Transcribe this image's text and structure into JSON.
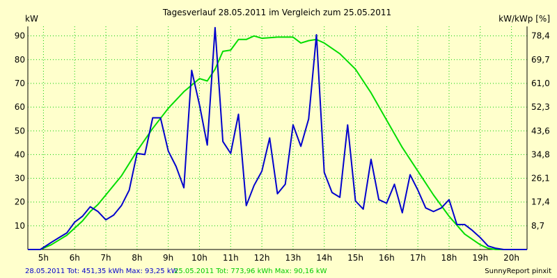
{
  "chart_data": {
    "type": "line",
    "title": "Tagesverlauf 28.05.2011 im Vergleich zum 25.05.2011",
    "ylabel_left": "kW",
    "ylabel_right": "kW/kWp [%]",
    "xlim": [
      4.5,
      20.5
    ],
    "ylim": [
      0,
      94
    ],
    "y_ticks": [
      10,
      20,
      30,
      40,
      50,
      60,
      70,
      80,
      90
    ],
    "y_right_ticks": [
      "8,7",
      "17,4",
      "26,1",
      "34,8",
      "43,6",
      "52,3",
      "61,0",
      "69,7",
      "78,4"
    ],
    "x_ticks": [
      5,
      6,
      7,
      8,
      9,
      10,
      11,
      12,
      13,
      14,
      15,
      16,
      17,
      18,
      19,
      20
    ],
    "x_tick_labels": [
      "5h",
      "6h",
      "7h",
      "8h",
      "9h",
      "10h",
      "11h",
      "12h",
      "13h",
      "14h",
      "15h",
      "16h",
      "17h",
      "18h",
      "19h",
      "20h"
    ],
    "grid": true,
    "series": [
      {
        "name": "28.05.2011",
        "color": "#0000cc",
        "x": [
          4.5,
          4.9,
          5.25,
          5.5,
          5.75,
          6.0,
          6.25,
          6.5,
          6.75,
          7.0,
          7.25,
          7.5,
          7.75,
          8.0,
          8.25,
          8.5,
          8.75,
          9.0,
          9.25,
          9.5,
          9.75,
          10.0,
          10.25,
          10.5,
          10.75,
          11.0,
          11.25,
          11.5,
          11.75,
          12.0,
          12.25,
          12.5,
          12.75,
          13.0,
          13.25,
          13.5,
          13.75,
          14.0,
          14.25,
          14.5,
          14.75,
          15.0,
          15.25,
          15.5,
          15.75,
          16.0,
          16.25,
          16.5,
          16.75,
          17.0,
          17.25,
          17.5,
          17.75,
          18.0,
          18.25,
          18.5,
          18.75,
          19.0,
          19.25,
          19.5,
          19.75,
          20.0,
          20.5
        ],
        "y": [
          0,
          0,
          3,
          5,
          7,
          11.5,
          14,
          18,
          16,
          12.5,
          14.5,
          18.5,
          25,
          40.5,
          40,
          55.5,
          55.5,
          41.5,
          35,
          26,
          75.5,
          61,
          44,
          93.5,
          45.5,
          40.5,
          57,
          18.5,
          27,
          33,
          47,
          23.5,
          27.5,
          52.5,
          43.5,
          55,
          90.5,
          32.5,
          24,
          22,
          52.5,
          20.5,
          17,
          38,
          21,
          19.5,
          27.5,
          15.5,
          31.5,
          25,
          17.5,
          16,
          17.5,
          21,
          10.5,
          10.5,
          8,
          5,
          1.5,
          0.5,
          0,
          0,
          0
        ]
      },
      {
        "name": "25.05.2011",
        "color": "#00dd00",
        "x": [
          4.5,
          4.9,
          5.25,
          5.5,
          5.75,
          6.0,
          6.25,
          6.5,
          6.75,
          7.0,
          7.5,
          8.0,
          8.5,
          9.0,
          9.5,
          10.0,
          10.25,
          10.5,
          10.75,
          11.0,
          11.25,
          11.5,
          11.75,
          12.0,
          12.5,
          13.0,
          13.25,
          13.5,
          13.75,
          14.0,
          14.5,
          15.0,
          15.5,
          16.0,
          16.5,
          17.0,
          17.5,
          18.0,
          18.5,
          19.0,
          19.25,
          19.5,
          19.75,
          20.0,
          20.5
        ],
        "y": [
          0,
          0,
          2,
          4,
          6,
          9,
          12,
          16,
          19,
          23,
          31,
          41.5,
          51,
          59.5,
          66.5,
          72,
          71,
          76,
          83.5,
          84,
          88.5,
          88.5,
          90,
          89,
          89.5,
          89.5,
          87,
          88,
          88.5,
          87,
          82.5,
          76,
          66,
          54.5,
          43,
          33,
          23,
          14,
          6.5,
          2,
          0.5,
          0,
          0,
          0,
          0
        ]
      }
    ]
  },
  "footer": {
    "legend_blue": "28.05.2011 Tot: 451,35 kWh Max: 93,25 kW",
    "legend_green": "25.05.2011 Tot: 773,96 kWh Max: 90,16 kW",
    "brand": "SunnyReport pinxit"
  }
}
